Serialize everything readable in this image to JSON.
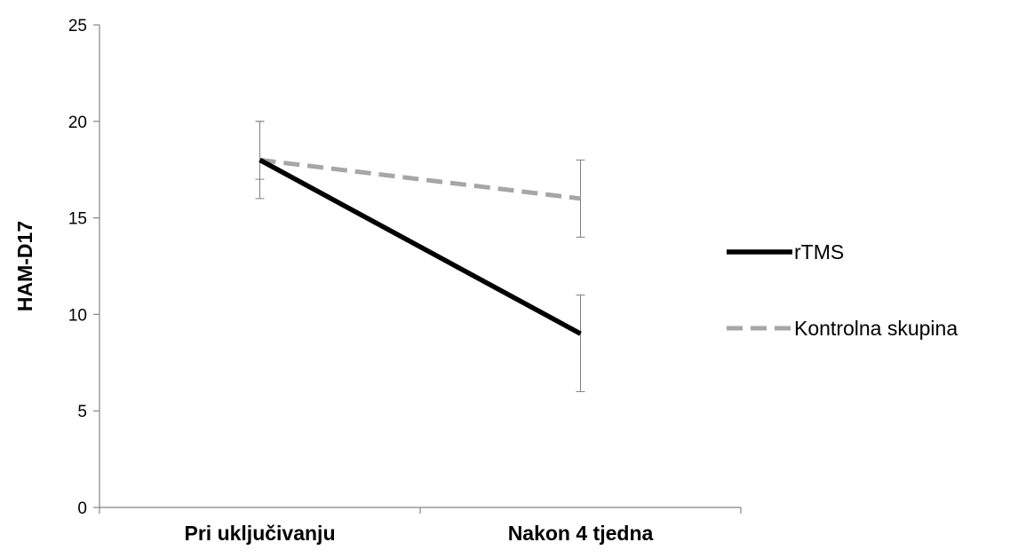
{
  "chart_data": {
    "type": "line",
    "title": "",
    "xlabel": "",
    "ylabel": "HAM-D17",
    "categories": [
      "Pri uključivanju",
      "Nakon 4 tjedna"
    ],
    "ylim": [
      0,
      25
    ],
    "yticks": [
      0,
      5,
      10,
      15,
      20,
      25
    ],
    "grid": false,
    "legend_position": "right",
    "series": [
      {
        "name": "rTMS",
        "values": [
          18,
          9
        ],
        "error_low": [
          17,
          6
        ],
        "error_high": [
          20,
          11
        ],
        "color": "#000000",
        "style": "solid"
      },
      {
        "name": "Kontrolna skupina",
        "values": [
          18,
          16
        ],
        "error_low": [
          16,
          14
        ],
        "error_high": [
          20,
          18
        ],
        "color": "#a6a6a6",
        "style": "dashed"
      }
    ]
  }
}
